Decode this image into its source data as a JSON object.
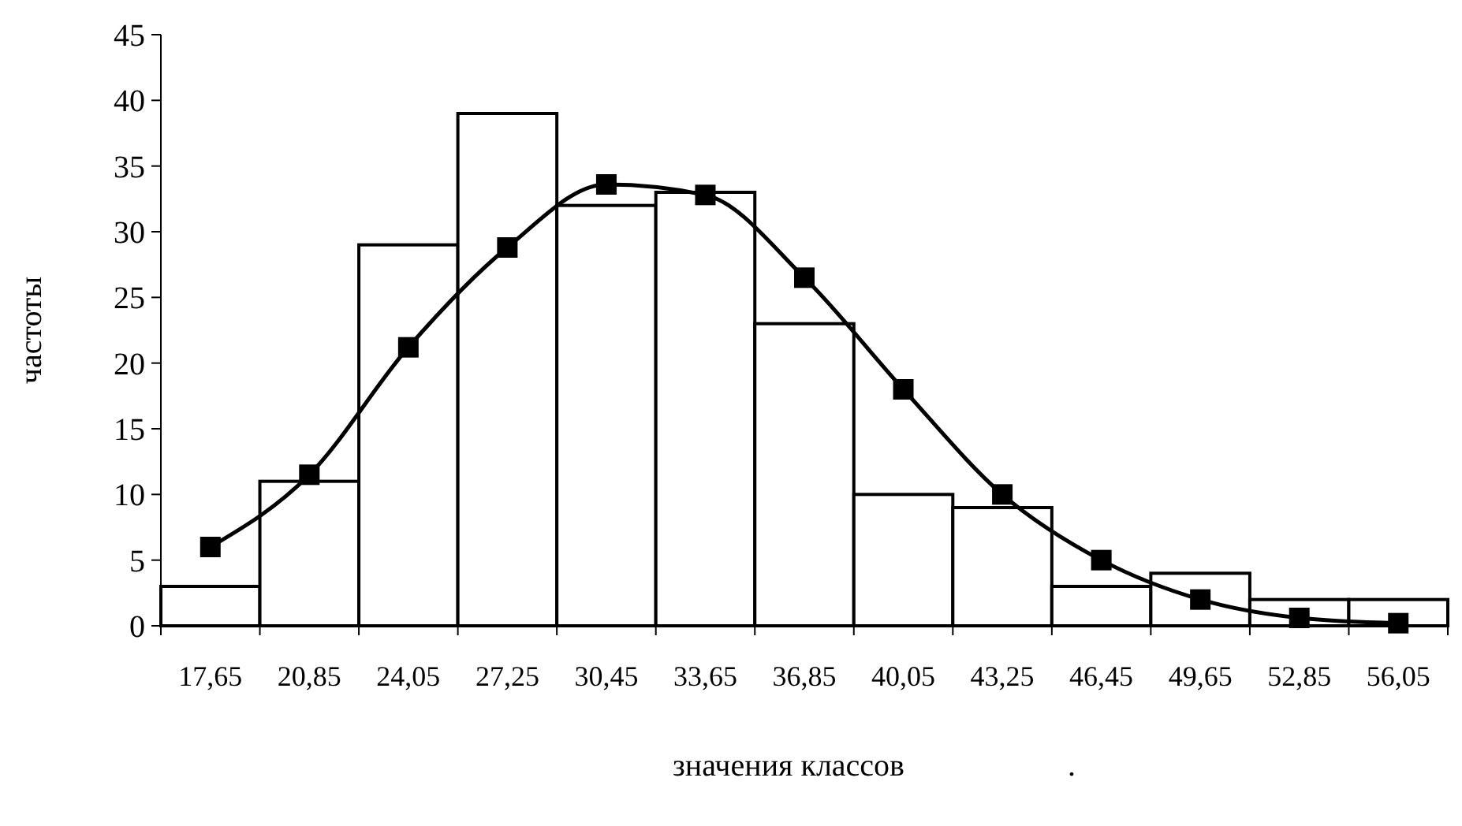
{
  "chart_data": {
    "type": "bar",
    "xlabel": "значения классов",
    "ylabel": "частоты",
    "annotations": [
      "."
    ],
    "categories": [
      "17,65",
      "20,85",
      "24,05",
      "27,25",
      "30,45",
      "33,65",
      "36,85",
      "40,05",
      "43,25",
      "46,45",
      "49,65",
      "52,85",
      "56,05"
    ],
    "series": [
      {
        "color": "#ffffff",
        "values": [
          3,
          11,
          29,
          39,
          32,
          33,
          23,
          10,
          9,
          3,
          4,
          2,
          2
        ]
      },
      {
        "type": "line",
        "color": "#000000",
        "values": [
          6,
          11.5,
          21.2,
          28.8,
          33.6,
          32.8,
          26.5,
          18,
          10,
          5,
          2,
          0.6,
          0.2
        ]
      }
    ],
    "ylim": [
      0,
      45
    ],
    "yticks": [
      0,
      5,
      10,
      15,
      20,
      25,
      30,
      35,
      40,
      45
    ],
    "marker": "square",
    "line_style": "solid",
    "grid": false
  }
}
